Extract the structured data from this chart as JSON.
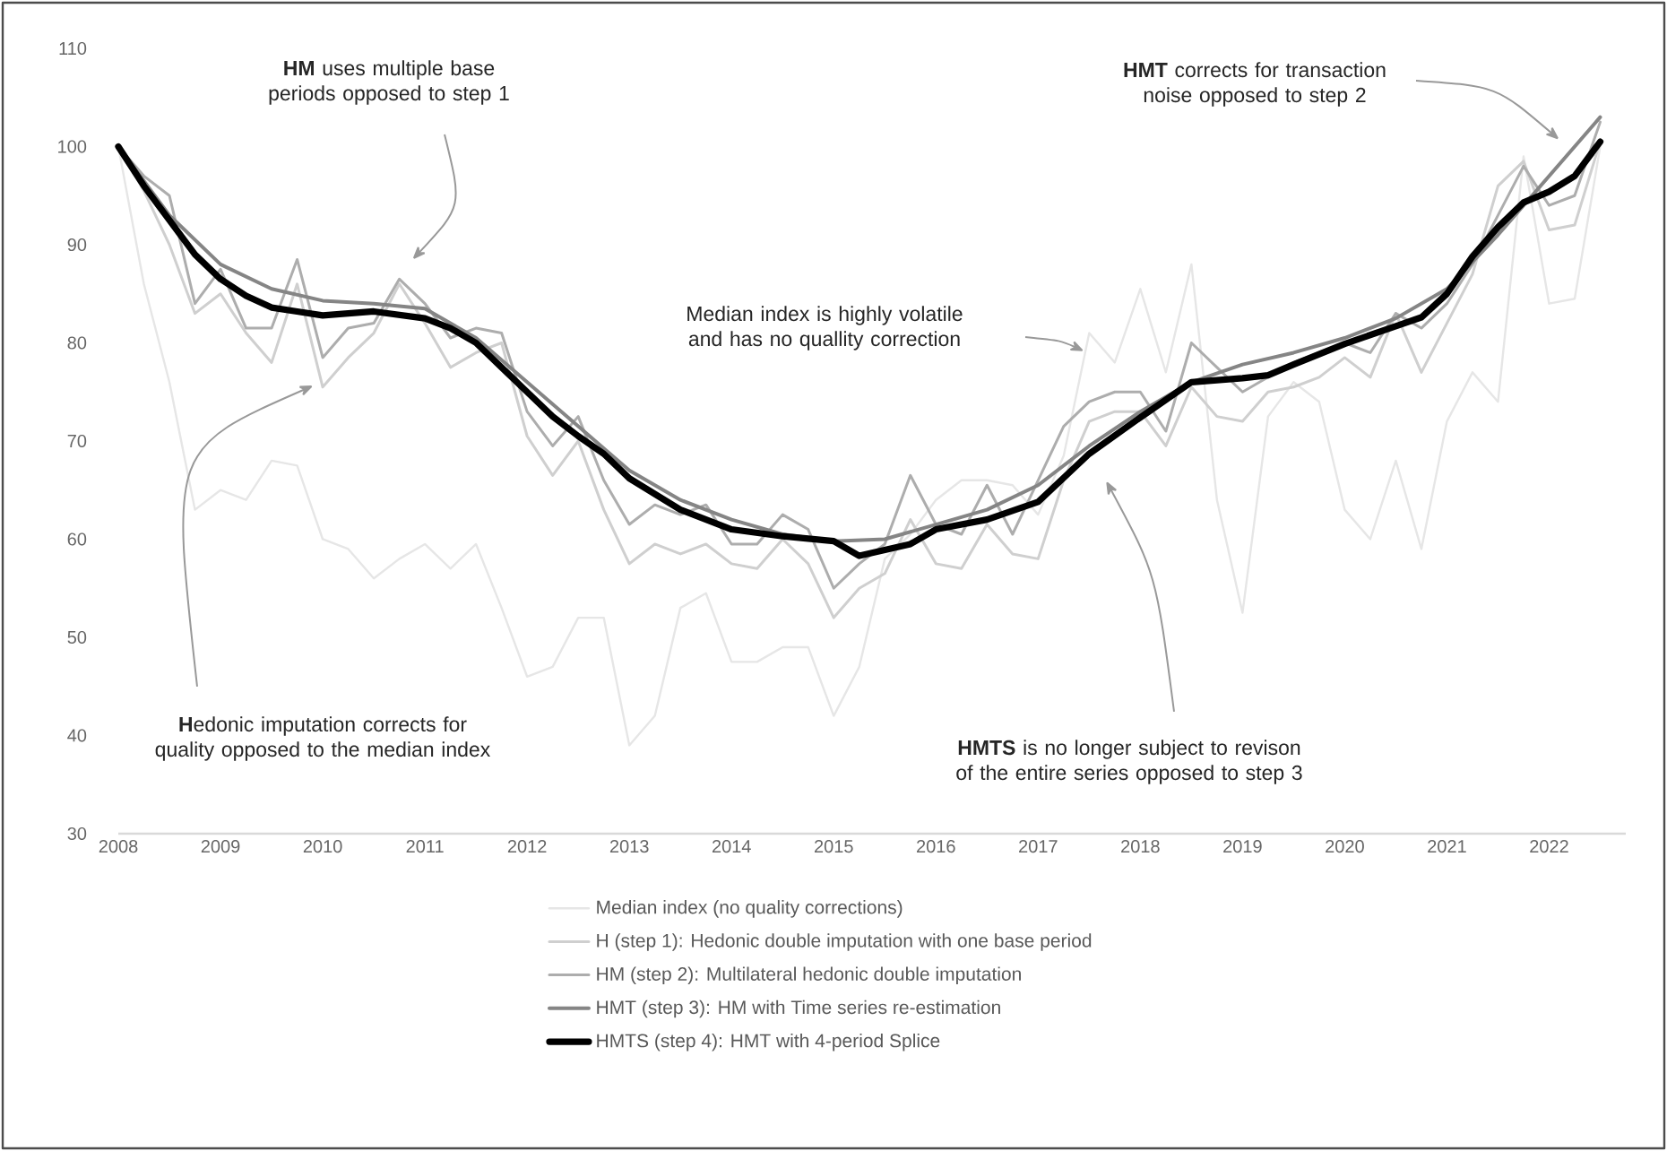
{
  "chart_data": {
    "type": "line",
    "xlim": [
      2008,
      2022.75
    ],
    "ylim": [
      30,
      110
    ],
    "xticks": [
      2008,
      2009,
      2010,
      2011,
      2012,
      2013,
      2014,
      2015,
      2016,
      2017,
      2018,
      2019,
      2020,
      2021,
      2022
    ],
    "yticks": [
      30,
      40,
      50,
      60,
      70,
      80,
      90,
      100,
      110
    ],
    "legend": "bottom",
    "marker": "none",
    "line_style": "solid",
    "annotations": [
      "**HM** uses multiple base periods opposed to step 1",
      "**H**edonic imputation corrects for quality opposed to the median index",
      "Median index is highly volatile and has no quallity correction",
      "**HMTS** is no longer subject to revison of the entire series opposed to step 3",
      "**HMT** corrects for transaction noise opposed to step 2"
    ],
    "series": [
      {
        "name": "Median index (no quality corrections)",
        "color": "#e6e6e6",
        "x": [
          2008,
          2008.25,
          2008.5,
          2008.75,
          2009,
          2009.25,
          2009.5,
          2009.75,
          2010,
          2010.25,
          2010.5,
          2010.75,
          2011,
          2011.25,
          2011.5,
          2011.75,
          2012,
          2012.25,
          2012.5,
          2012.75,
          2013,
          2013.25,
          2013.5,
          2013.75,
          2014,
          2014.25,
          2014.5,
          2014.75,
          2015,
          2015.25,
          2015.5,
          2015.75,
          2016,
          2016.25,
          2016.5,
          2016.75,
          2017,
          2017.25,
          2017.5,
          2017.75,
          2018,
          2018.25,
          2018.5,
          2018.75,
          2019,
          2019.25,
          2019.5,
          2019.75,
          2020,
          2020.25,
          2020.5,
          2020.75,
          2021,
          2021.25,
          2021.5,
          2021.75,
          2022,
          2022.25,
          2022.5
        ],
        "values": [
          100,
          86,
          76,
          63,
          65,
          64,
          68,
          67.5,
          60,
          59,
          56,
          58,
          59.5,
          57,
          59.5,
          53,
          46,
          47,
          52,
          52,
          39,
          42,
          53,
          54.5,
          47.5,
          47.5,
          49,
          49,
          42,
          47,
          58,
          60.5,
          64,
          66,
          66,
          65.5,
          62.5,
          68.5,
          81,
          78,
          85.5,
          77,
          88,
          64,
          52.5,
          72.5,
          76,
          74,
          63,
          60,
          68,
          59,
          72,
          77,
          74,
          99,
          84,
          84.5,
          100
        ]
      },
      {
        "name": "H (step 1): Hedonic double imputation with one base period",
        "color": "#cfcfcf",
        "x": [
          2008,
          2008.25,
          2008.5,
          2008.75,
          2009,
          2009.25,
          2009.5,
          2009.75,
          2010,
          2010.25,
          2010.5,
          2010.75,
          2011,
          2011.25,
          2011.5,
          2011.75,
          2012,
          2012.25,
          2012.5,
          2012.75,
          2013,
          2013.25,
          2013.5,
          2013.75,
          2014,
          2014.25,
          2014.5,
          2014.75,
          2015,
          2015.25,
          2015.5,
          2015.75,
          2016,
          2016.25,
          2016.5,
          2016.75,
          2017,
          2017.25,
          2017.5,
          2017.75,
          2018,
          2018.25,
          2018.5,
          2018.75,
          2019,
          2019.25,
          2019.5,
          2019.75,
          2020,
          2020.25,
          2020.5,
          2020.75,
          2021,
          2021.25,
          2021.5,
          2021.75,
          2022,
          2022.25,
          2022.5
        ],
        "values": [
          100,
          95.5,
          90,
          83,
          85,
          81,
          78,
          86,
          75.5,
          78.5,
          81,
          86,
          82,
          77.5,
          79,
          80,
          70.5,
          66.5,
          70,
          63,
          57.5,
          59.5,
          58.5,
          59.5,
          57.5,
          57,
          60,
          57.5,
          52,
          55,
          56.5,
          62,
          57.5,
          57,
          61.5,
          58.5,
          58,
          66,
          72,
          73,
          73,
          69.5,
          75.5,
          72.5,
          72,
          75,
          75.5,
          76.5,
          78.5,
          76.5,
          83,
          77,
          82,
          87,
          96,
          98.5,
          91.5,
          92,
          100.5
        ]
      },
      {
        "name": "HM (step 2): Multilateral hedonic double imputation",
        "color": "#adadad",
        "x": [
          2008,
          2008.25,
          2008.5,
          2008.75,
          2009,
          2009.25,
          2009.5,
          2009.75,
          2010,
          2010.25,
          2010.5,
          2010.75,
          2011,
          2011.25,
          2011.5,
          2011.75,
          2012,
          2012.25,
          2012.5,
          2012.75,
          2013,
          2013.25,
          2013.5,
          2013.75,
          2014,
          2014.25,
          2014.5,
          2014.75,
          2015,
          2015.25,
          2015.5,
          2015.75,
          2016,
          2016.25,
          2016.5,
          2016.75,
          2017,
          2017.25,
          2017.5,
          2017.75,
          2018,
          2018.25,
          2018.5,
          2018.75,
          2019,
          2019.25,
          2019.5,
          2019.75,
          2020,
          2020.25,
          2020.5,
          2020.75,
          2021,
          2021.25,
          2021.5,
          2021.75,
          2022,
          2022.25,
          2022.5
        ],
        "values": [
          100,
          97,
          95,
          84,
          87.5,
          81.5,
          81.5,
          88.5,
          78.5,
          81.5,
          82,
          86.5,
          84,
          80.5,
          81.5,
          81,
          73,
          69.5,
          72.5,
          66,
          61.5,
          63.5,
          62.5,
          63.5,
          59.5,
          59.5,
          62.5,
          61,
          55,
          57.5,
          59.5,
          66.5,
          61.5,
          60.5,
          65.5,
          60.5,
          66,
          71.5,
          74,
          75,
          75,
          71,
          80,
          77.5,
          75,
          76.5,
          78,
          79,
          80,
          79,
          83,
          81.5,
          84,
          88,
          93,
          98,
          94,
          95,
          102.5
        ]
      },
      {
        "name": "HMT (step 3): HM with Time series re-estimation",
        "color": "#858585",
        "x": [
          2008,
          2008.5,
          2009,
          2009.5,
          2010,
          2010.5,
          2011,
          2011.5,
          2012,
          2012.5,
          2013,
          2013.5,
          2014,
          2014.5,
          2015,
          2015.5,
          2016,
          2016.5,
          2017,
          2017.5,
          2018,
          2018.5,
          2019,
          2019.5,
          2020,
          2020.5,
          2021,
          2021.5,
          2022,
          2022.5
        ],
        "values": [
          100,
          93,
          88,
          85.5,
          84.3,
          84,
          83.5,
          80.5,
          76,
          71.5,
          67,
          64,
          62,
          60.5,
          59.8,
          60,
          61.5,
          63,
          65.5,
          69.5,
          73,
          76,
          77.8,
          79,
          80.5,
          82.5,
          85.5,
          91,
          97,
          103
        ]
      },
      {
        "name": "HMTS (step 4): HMT with 4-period Splice",
        "color": "#000000",
        "x": [
          2008,
          2008.25,
          2008.5,
          2008.75,
          2009,
          2009.25,
          2009.5,
          2009.75,
          2010,
          2010.5,
          2011,
          2011.25,
          2011.5,
          2011.75,
          2012,
          2012.25,
          2012.5,
          2012.75,
          2013,
          2013.5,
          2014,
          2014.5,
          2015,
          2015.25,
          2015.75,
          2016,
          2016.5,
          2017,
          2017.5,
          2018,
          2018.5,
          2019,
          2019.25,
          2019.5,
          2020,
          2020.5,
          2020.75,
          2021,
          2021.25,
          2021.5,
          2021.75,
          2022,
          2022.25,
          2022.5
        ],
        "values": [
          100,
          96,
          92.5,
          89,
          86.5,
          84.8,
          83.6,
          83.2,
          82.8,
          83.2,
          82.5,
          81.5,
          80,
          77.5,
          75,
          72.5,
          70.5,
          68.7,
          66.2,
          63,
          61,
          60.3,
          59.8,
          58.3,
          59.5,
          61,
          62,
          63.8,
          68.7,
          72.4,
          76,
          76.4,
          76.7,
          77.8,
          79.9,
          81.7,
          82.6,
          85,
          88.8,
          91.8,
          94.3,
          95.4,
          97,
          100.5
        ]
      }
    ]
  }
}
